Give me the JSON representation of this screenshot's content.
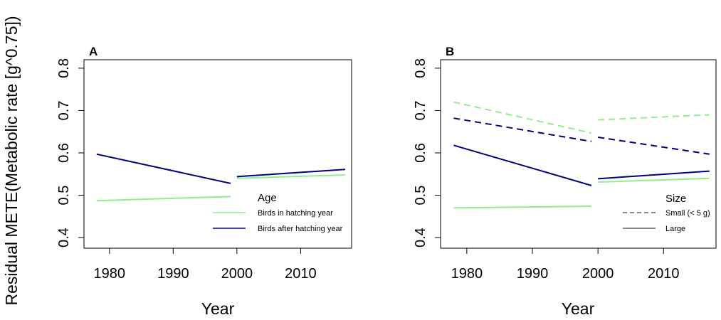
{
  "figure": {
    "ylabel": "Residual METE(Metabolic rate [g^0.75])",
    "xlabel": "Year"
  },
  "chart_data": [
    {
      "type": "line",
      "panel_label": "A",
      "xlabel": "Year",
      "ylabel": "Residual METE(Metabolic rate [g^0.75])",
      "xlim": [
        1976,
        2018
      ],
      "ylim": [
        0.375,
        0.82
      ],
      "xticks": [
        "1980",
        "1990",
        "2000",
        "2010"
      ],
      "yticks": [
        "0.4",
        "0.5",
        "0.6",
        "0.7",
        "0.8"
      ],
      "legend": {
        "title": "Age",
        "position": "bottom-right",
        "entries": [
          {
            "label": "Birds in hatching year",
            "color": "#90ee90",
            "dash": "solid"
          },
          {
            "label": "Birds after hatching year",
            "color": "#000080",
            "dash": "solid"
          }
        ]
      },
      "series": [
        {
          "name": "Birds in hatching year, before 2000",
          "color": "#90ee90",
          "dash": "solid",
          "x": [
            1978,
            1999
          ],
          "y": [
            0.487,
            0.497
          ]
        },
        {
          "name": "Birds in hatching year, after 2000",
          "color": "#90ee90",
          "dash": "solid",
          "x": [
            2000,
            2017
          ],
          "y": [
            0.54,
            0.548
          ]
        },
        {
          "name": "Birds after hatching year, before 2000",
          "color": "#000080",
          "dash": "solid",
          "x": [
            1978,
            1999
          ],
          "y": [
            0.597,
            0.528
          ]
        },
        {
          "name": "Birds after hatching year, after 2000",
          "color": "#000080",
          "dash": "solid",
          "x": [
            2000,
            2017
          ],
          "y": [
            0.544,
            0.561
          ]
        }
      ]
    },
    {
      "type": "line",
      "panel_label": "B",
      "xlabel": "Year",
      "xlim": [
        1976,
        2018
      ],
      "ylim": [
        0.375,
        0.82
      ],
      "xticks": [
        "1980",
        "1990",
        "2000",
        "2010"
      ],
      "yticks": [
        "0.4",
        "0.5",
        "0.6",
        "0.7",
        "0.8"
      ],
      "legend": {
        "title": "Size",
        "position": "bottom-right",
        "entries": [
          {
            "label": "Small (< 5 g)",
            "color": "#444444",
            "dash": "dashed"
          },
          {
            "label": "Large",
            "color": "#444444",
            "dash": "solid"
          }
        ]
      },
      "series": [
        {
          "name": "Small, hatching year, before 2000",
          "color": "#90ee90",
          "dash": "dashed",
          "x": [
            1978,
            1999
          ],
          "y": [
            0.72,
            0.647
          ]
        },
        {
          "name": "Small, hatching year, after 2000",
          "color": "#90ee90",
          "dash": "dashed",
          "x": [
            2000,
            2017
          ],
          "y": [
            0.678,
            0.69
          ]
        },
        {
          "name": "Small, after hatching year, before 2000",
          "color": "#000080",
          "dash": "dashed",
          "x": [
            1978,
            1999
          ],
          "y": [
            0.682,
            0.627
          ]
        },
        {
          "name": "Small, after hatching year, after 2000",
          "color": "#000080",
          "dash": "dashed",
          "x": [
            2000,
            2017
          ],
          "y": [
            0.637,
            0.597
          ]
        },
        {
          "name": "Large, hatching year, before 2000",
          "color": "#90ee90",
          "dash": "solid",
          "x": [
            1978,
            1999
          ],
          "y": [
            0.47,
            0.474
          ]
        },
        {
          "name": "Large, hatching year, after 2000",
          "color": "#90ee90",
          "dash": "solid",
          "x": [
            2000,
            2017
          ],
          "y": [
            0.531,
            0.54
          ]
        },
        {
          "name": "Large, after hatching year, before 2000",
          "color": "#000080",
          "dash": "solid",
          "x": [
            1978,
            1999
          ],
          "y": [
            0.618,
            0.523
          ]
        },
        {
          "name": "Large, after hatching year, after 2000",
          "color": "#000080",
          "dash": "solid",
          "x": [
            2000,
            2017
          ],
          "y": [
            0.539,
            0.557
          ]
        }
      ]
    }
  ]
}
